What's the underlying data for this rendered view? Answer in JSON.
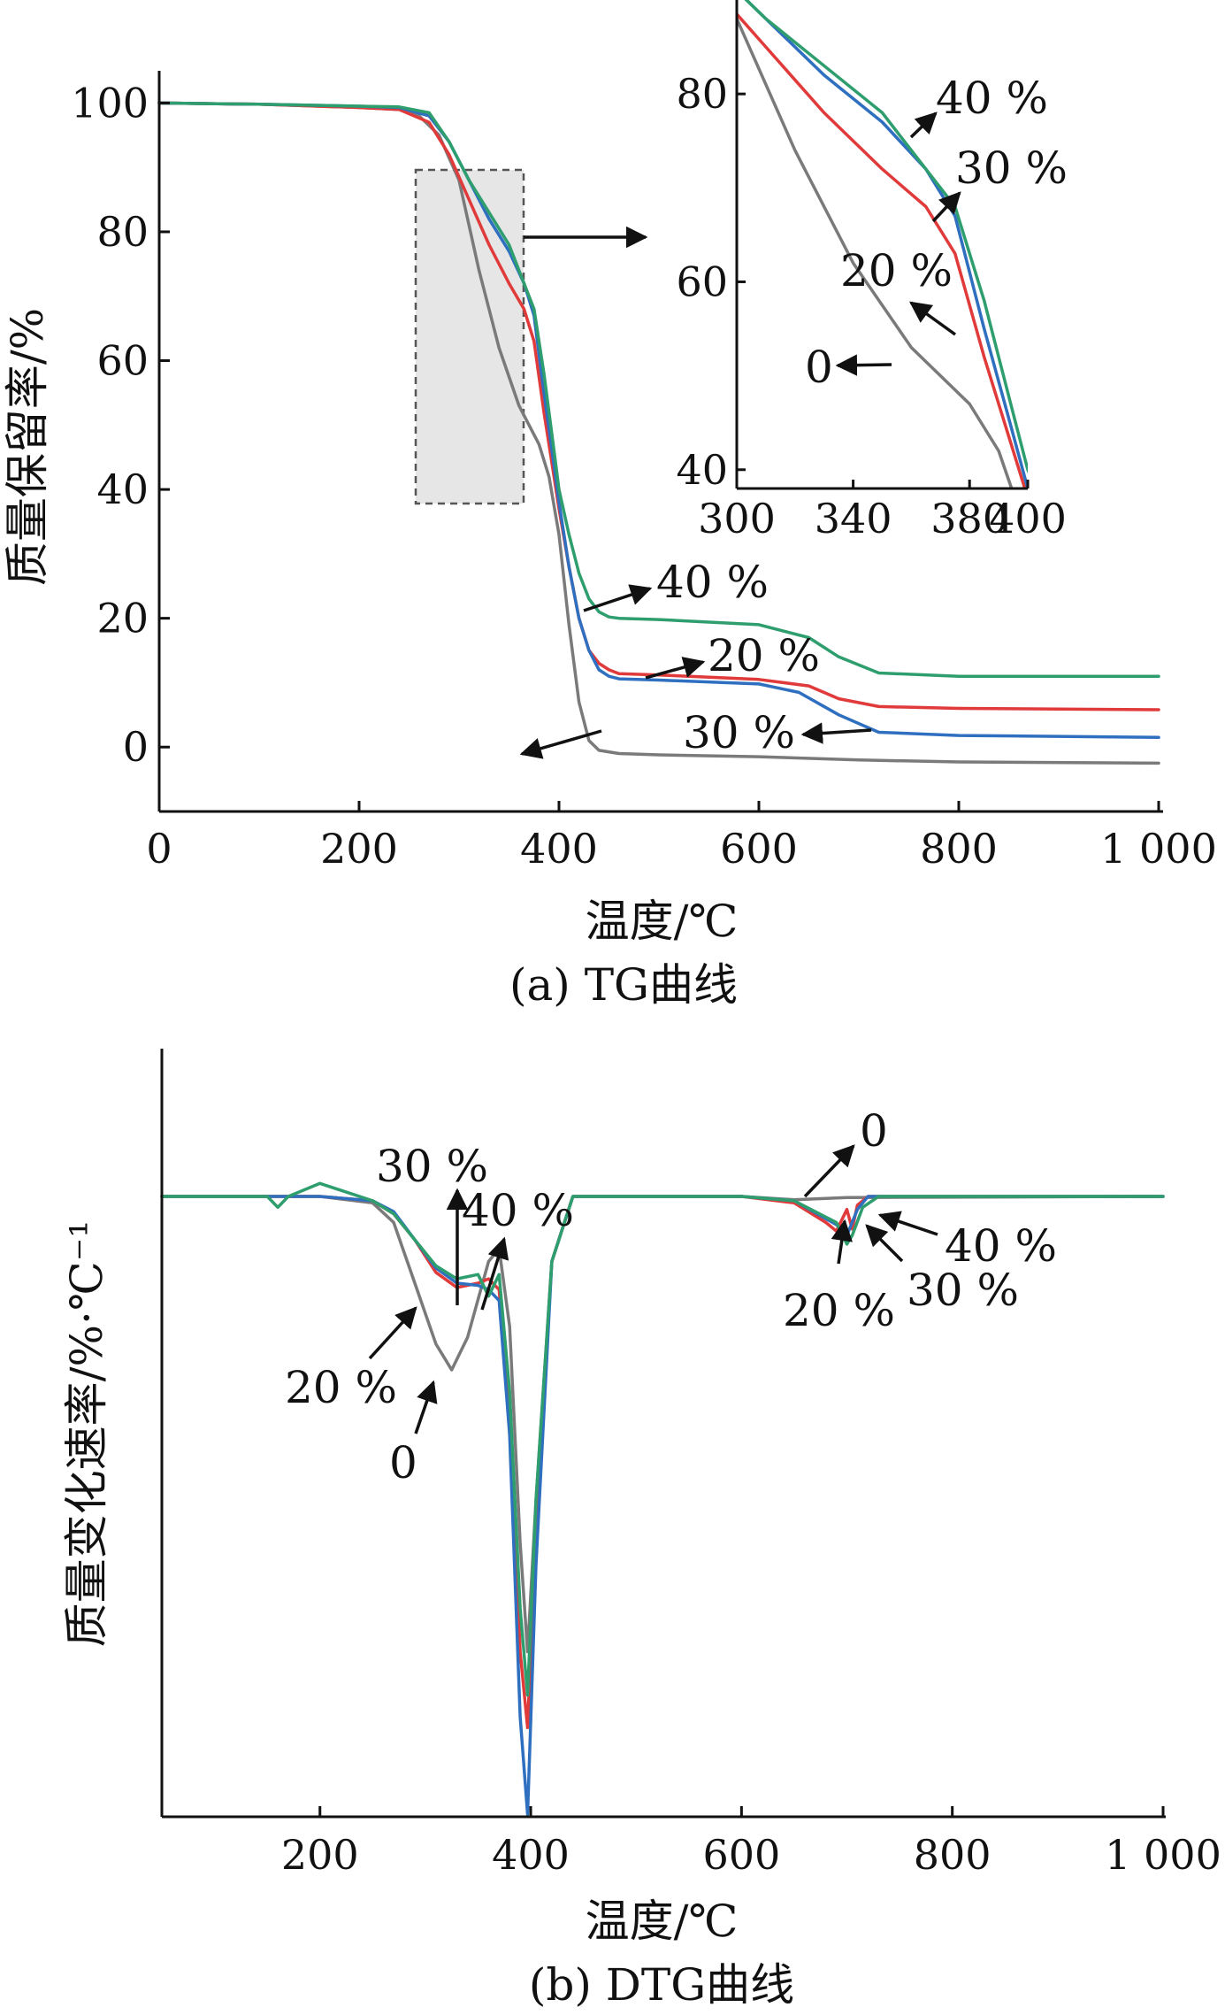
{
  "colors": {
    "s0": "#7a7a7a",
    "s20": "#e03a3a",
    "s30": "#2f6fc0",
    "s40": "#2f9e6e"
  },
  "chart_data": [
    {
      "type": "line",
      "caption": "(a) TG曲线",
      "xlabel": "温度/℃",
      "ylabel": "质量保留率/%",
      "xlim": [
        0,
        1000
      ],
      "ylim": [
        -10,
        105
      ],
      "xticks": [
        0,
        200,
        400,
        600,
        800,
        1000
      ],
      "xtick_labels": [
        "0",
        "200",
        "400",
        "600",
        "800",
        "1 000"
      ],
      "yticks": [
        0,
        20,
        40,
        60,
        80,
        100
      ],
      "ytick_labels": [
        "0",
        "20",
        "40",
        "60",
        "80",
        "100"
      ],
      "series": [
        {
          "name": "0",
          "color": "#7a7a7a",
          "x": [
            0,
            100,
            200,
            240,
            260,
            280,
            300,
            320,
            340,
            360,
            370,
            380,
            390,
            400,
            410,
            420,
            430,
            440,
            460,
            500,
            600,
            700,
            800,
            1000
          ],
          "y": [
            100,
            99.8,
            99.3,
            99,
            98,
            95,
            88,
            74,
            62,
            53,
            50,
            47,
            42,
            33,
            19,
            7,
            1,
            -0.5,
            -1,
            -1.2,
            -1.5,
            -2,
            -2.3,
            -2.5
          ]
        },
        {
          "name": "20 %",
          "color": "#e03a3a",
          "x": [
            0,
            100,
            200,
            240,
            270,
            290,
            310,
            330,
            350,
            365,
            375,
            385,
            393,
            400,
            410,
            420,
            430,
            440,
            450,
            460,
            500,
            600,
            650,
            680,
            720,
            800,
            1000
          ],
          "y": [
            100,
            99.8,
            99.3,
            99,
            97,
            92,
            85,
            78,
            72,
            68,
            63,
            52,
            44,
            37,
            28,
            20,
            15,
            13,
            12,
            11.4,
            11.2,
            10.5,
            9.5,
            7.5,
            6.3,
            6,
            5.8
          ]
        },
        {
          "name": "30 %",
          "color": "#2f6fc0",
          "x": [
            0,
            100,
            200,
            240,
            270,
            290,
            310,
            330,
            350,
            365,
            375,
            385,
            393,
            400,
            410,
            420,
            430,
            440,
            450,
            460,
            500,
            600,
            640,
            680,
            720,
            800,
            1000
          ],
          "y": [
            100,
            99.8,
            99.5,
            99.3,
            98,
            94,
            88,
            82,
            77,
            72,
            67,
            55,
            46,
            38,
            28,
            20,
            15,
            12,
            11,
            10.6,
            10.4,
            9.8,
            8.5,
            5,
            2.3,
            1.8,
            1.5
          ]
        },
        {
          "name": "40 %",
          "color": "#2f9e6e",
          "x": [
            0,
            100,
            200,
            240,
            270,
            290,
            310,
            330,
            350,
            365,
            375,
            385,
            395,
            400,
            410,
            420,
            430,
            440,
            450,
            460,
            500,
            600,
            650,
            680,
            720,
            800,
            1000
          ],
          "y": [
            100,
            99.8,
            99.5,
            99.4,
            98.5,
            94,
            88,
            83,
            78,
            72,
            68,
            58,
            46,
            40,
            33,
            27,
            23,
            21,
            20.2,
            20,
            19.8,
            19,
            17,
            14,
            11.5,
            11,
            11
          ]
        }
      ],
      "annotations": [
        "40 %",
        "20 %",
        "30 %"
      ],
      "inset": {
        "xlim": [
          300,
          400
        ],
        "ylim": [
          38,
          90
        ],
        "xticks": [
          300,
          340,
          380,
          400
        ],
        "xtick_labels": [
          "300",
          "340",
          "380",
          "400"
        ],
        "yticks": [
          40,
          60,
          80
        ],
        "ytick_labels": [
          "40",
          "60",
          "80"
        ],
        "annotations": [
          "40 %",
          "30 %",
          "20 %",
          "0"
        ]
      }
    },
    {
      "type": "line",
      "caption": "(b) DTG曲线",
      "xlabel": "温度/℃",
      "ylabel": "质量变化速率/%·℃⁻¹",
      "xlim": [
        50,
        1000
      ],
      "xticks": [
        200,
        400,
        600,
        800,
        1000
      ],
      "xtick_labels": [
        "200",
        "400",
        "600",
        "800",
        "1 000"
      ],
      "series": [
        {
          "name": "0",
          "color": "#7a7a7a",
          "x": [
            50,
            150,
            200,
            250,
            270,
            290,
            310,
            325,
            340,
            360,
            370,
            380,
            390,
            397,
            405,
            420,
            440,
            600,
            650,
            700,
            1000
          ],
          "y": [
            0,
            0,
            0,
            -0.3,
            -1.2,
            -4,
            -6.8,
            -8,
            -6.5,
            -3,
            -2.4,
            -6,
            -16,
            -21,
            -14,
            -3,
            0,
            0,
            -0.15,
            -0.05,
            0
          ]
        },
        {
          "name": "20 %",
          "color": "#e03a3a",
          "x": [
            50,
            150,
            200,
            250,
            270,
            290,
            310,
            330,
            350,
            360,
            370,
            380,
            390,
            397,
            405,
            420,
            440,
            600,
            650,
            680,
            690,
            700,
            705,
            710,
            720,
            1000
          ],
          "y": [
            0,
            0,
            0,
            -0.2,
            -0.8,
            -2,
            -3.5,
            -4.2,
            -4,
            -3.8,
            -4.3,
            -10,
            -21,
            -24.5,
            -15,
            -3,
            0,
            0,
            -0.3,
            -1.2,
            -1.6,
            -0.6,
            -1.5,
            -0.4,
            0,
            0
          ]
        },
        {
          "name": "30 %",
          "color": "#2f6fc0",
          "x": [
            50,
            150,
            200,
            250,
            270,
            290,
            310,
            330,
            350,
            360,
            370,
            380,
            390,
            397,
            405,
            420,
            440,
            600,
            650,
            690,
            700,
            710,
            720,
            1000
          ],
          "y": [
            0,
            0,
            0,
            -0.2,
            -0.7,
            -2,
            -3.3,
            -4,
            -4.1,
            -4.3,
            -4.8,
            -11,
            -24,
            -28.5,
            -17,
            -3,
            0,
            0,
            -0.2,
            -1.3,
            -1.8,
            -0.6,
            0,
            0
          ]
        },
        {
          "name": "40 %",
          "color": "#2f9e6e",
          "x": [
            50,
            150,
            160,
            170,
            200,
            250,
            270,
            290,
            310,
            330,
            350,
            360,
            370,
            380,
            390,
            397,
            405,
            420,
            440,
            600,
            650,
            690,
            700,
            705,
            715,
            730,
            1000
          ],
          "y": [
            0,
            0,
            -0.5,
            0,
            0.6,
            -0.2,
            -0.8,
            -2,
            -3.2,
            -3.8,
            -3.6,
            -4.6,
            -3.6,
            -9,
            -19,
            -23,
            -14,
            -3,
            0,
            0,
            -0.2,
            -1.2,
            -2.2,
            -1.8,
            -0.5,
            0,
            0
          ]
        }
      ],
      "annotations": [
        "30 %",
        "40 %",
        "20 %",
        "0",
        "0",
        "40 %",
        "30 %",
        "20 %"
      ]
    }
  ]
}
